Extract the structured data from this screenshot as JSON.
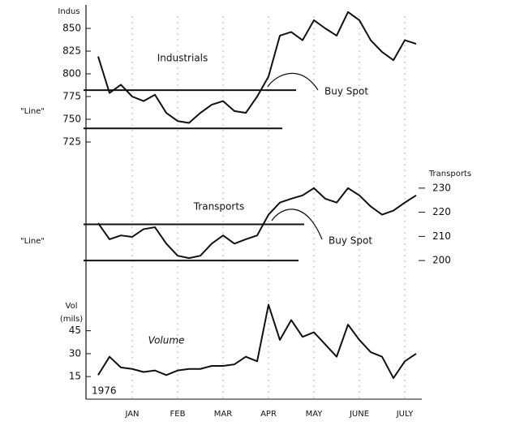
{
  "chart_data": {
    "type": "line",
    "color": "#111111",
    "grid": "x",
    "categories": [
      null,
      null,
      null,
      "JAN",
      null,
      null,
      null,
      "FEB",
      null,
      null,
      null,
      "MAR",
      null,
      null,
      null,
      "APR",
      null,
      null,
      null,
      "MAY",
      null,
      null,
      null,
      "JUNE",
      null,
      null,
      null,
      "JULY",
      null
    ],
    "year": "1976",
    "panels": [
      {
        "axis_label": "Indus",
        "axis_side": "left",
        "ylim": [
          725,
          870
        ],
        "yticks": [
          725,
          750,
          775,
          800,
          825,
          850
        ],
        "series": [
          {
            "name": "Industrials",
            "color": "#111111",
            "values": [
              819,
              779,
              788,
              775,
              770,
              777,
              757,
              748,
              746,
              757,
              766,
              770,
              759,
              757,
              775,
              797,
              842,
              846,
              837,
              859,
              850,
              842,
              868,
              859,
              837,
              824,
              815,
              837,
              833
            ]
          }
        ],
        "channel": {
          "label": "\"Line\"",
          "upper": 782,
          "lower": 740
        },
        "signal": "Buy Spot"
      },
      {
        "axis_label": "Transports",
        "axis_side": "right",
        "ylim": [
          195,
          235
        ],
        "yticks": [
          200,
          210,
          220,
          230
        ],
        "series": [
          {
            "name": "Transports",
            "color": "#111111",
            "values": [
              215.5,
              208.8,
              210.4,
              209.8,
              213,
              213.8,
              207,
              202,
              201,
              202,
              207,
              210.4,
              207,
              208.8,
              210.4,
              219,
              224,
              225.6,
              227,
              230,
              225.6,
              224,
              230,
              227,
              222.4,
              219,
              220.7,
              224,
              227
            ]
          }
        ],
        "channel": {
          "label": "\"Line\"",
          "upper": 215,
          "lower": 200
        },
        "signal": "Buy Spot"
      },
      {
        "axis_label": "Vol",
        "axis_sublabel": "(mils)",
        "axis_side": "left",
        "ylim": [
          5,
          65
        ],
        "yticks": [
          15,
          30,
          45
        ],
        "series": [
          {
            "name": "Volume",
            "color": "#111111",
            "values": [
              16,
              28,
              21,
              20,
              18,
              19,
              16,
              19,
              20,
              20,
              22,
              22,
              23,
              28,
              25,
              62,
              39,
              52,
              41,
              44,
              36,
              28,
              49,
              39,
              31,
              28,
              14,
              25,
              30
            ]
          }
        ]
      }
    ]
  }
}
